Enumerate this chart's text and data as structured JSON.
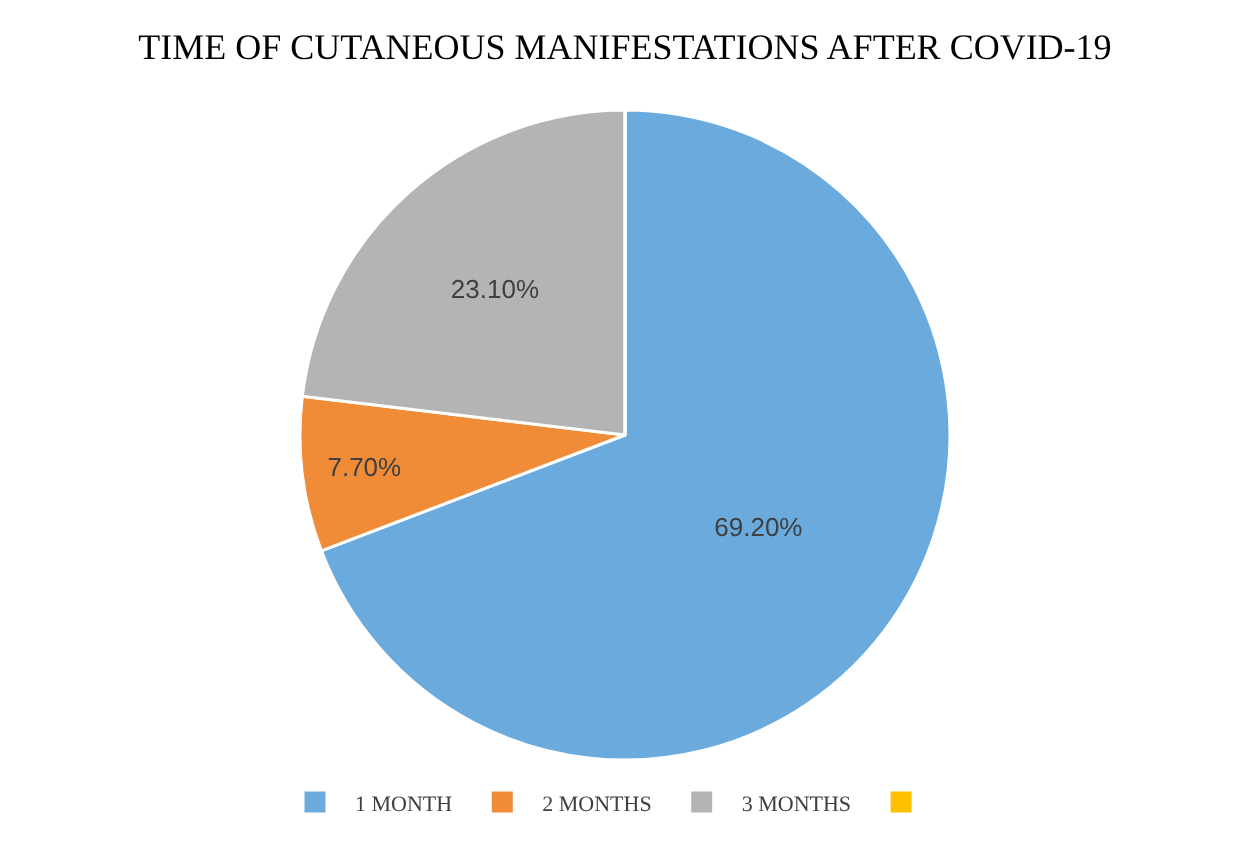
{
  "chart_data": {
    "type": "pie",
    "title": "TIME OF CUTANEOUS MANIFESTATIONS AFTER COVID-19",
    "categories": [
      "1 MONTH",
      "2 MONTHS",
      "3 MONTHS",
      null
    ],
    "values": [
      69.2,
      7.7,
      23.1,
      0
    ],
    "value_labels": [
      "69.20%",
      "7.70%",
      "23.10%",
      null
    ],
    "colors": [
      "#6aaadd",
      "#f08c38",
      "#b4b4b4",
      "#ffc000"
    ],
    "legend": "bottom"
  }
}
